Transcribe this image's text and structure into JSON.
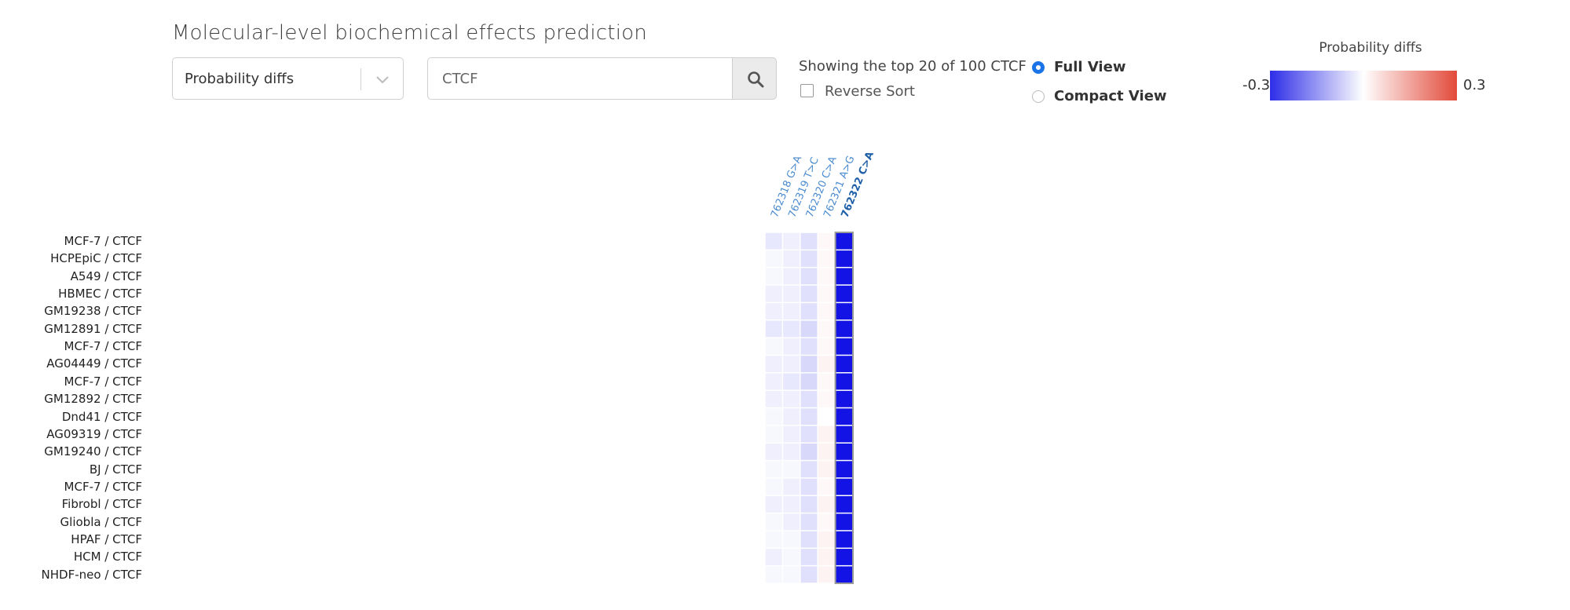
{
  "page_title": "Molecular-level biochemical effects prediction",
  "controls": {
    "metric_select_value": "Probability diffs",
    "search_value": "CTCF",
    "showing_text": "Showing the top 20 of 100 CTCF",
    "reverse_sort_label": "Reverse Sort",
    "reverse_sort_checked": false,
    "view_options": [
      {
        "label": "Full View",
        "selected": true
      },
      {
        "label": "Compact View",
        "selected": false
      }
    ]
  },
  "legend": {
    "title": "Probability diffs",
    "min_label": "-0.3",
    "max_label": "0.3",
    "colors": {
      "negative": "#2d2de8",
      "zero": "#ffffff",
      "positive": "#e24a3a"
    }
  },
  "icons": {
    "search_button": "search-icon",
    "select_toggle": "chevron-down-icon"
  },
  "chart_data": {
    "type": "heatmap",
    "columns": [
      "762318 G>A",
      "762319 T>C",
      "762320 C>A",
      "762321 A>G",
      "762322 C>A"
    ],
    "highlighted_column": "762322 C>A",
    "rows": [
      "MCF-7 / CTCF",
      "HCPEpiC / CTCF",
      "A549 / CTCF",
      "HBMEC / CTCF",
      "GM19238 / CTCF",
      "GM12891 / CTCF",
      "MCF-7 / CTCF",
      "AG04449 / CTCF",
      "MCF-7 / CTCF",
      "GM12892 / CTCF",
      "Dnd41 / CTCF",
      "AG09319 / CTCF",
      "GM19240 / CTCF",
      "BJ / CTCF",
      "MCF-7 / CTCF",
      "Fibrobl / CTCF",
      "Gliobla / CTCF",
      "HPAF / CTCF",
      "HCM / CTCF",
      "NHDF-neo / CTCF"
    ],
    "values": [
      [
        -0.03,
        -0.02,
        -0.04,
        0.01,
        -0.3
      ],
      [
        -0.01,
        -0.02,
        -0.04,
        0.01,
        -0.3
      ],
      [
        -0.01,
        -0.02,
        -0.04,
        0.01,
        -0.3
      ],
      [
        -0.02,
        -0.02,
        -0.04,
        0.01,
        -0.3
      ],
      [
        -0.02,
        -0.02,
        -0.04,
        0.01,
        -0.3
      ],
      [
        -0.03,
        -0.03,
        -0.05,
        0.01,
        -0.3
      ],
      [
        -0.01,
        -0.02,
        -0.04,
        0.01,
        -0.3
      ],
      [
        -0.02,
        -0.02,
        -0.05,
        0.02,
        -0.3
      ],
      [
        -0.02,
        -0.03,
        -0.05,
        0.01,
        -0.3
      ],
      [
        -0.02,
        -0.02,
        -0.04,
        0.01,
        -0.3
      ],
      [
        -0.01,
        -0.02,
        -0.04,
        0.0,
        -0.3
      ],
      [
        -0.01,
        -0.02,
        -0.04,
        0.02,
        -0.3
      ],
      [
        -0.02,
        -0.02,
        -0.05,
        0.02,
        -0.3
      ],
      [
        -0.01,
        -0.01,
        -0.04,
        0.02,
        -0.3
      ],
      [
        -0.01,
        -0.02,
        -0.04,
        0.01,
        -0.3
      ],
      [
        -0.02,
        -0.02,
        -0.04,
        0.02,
        -0.3
      ],
      [
        -0.01,
        -0.02,
        -0.04,
        0.01,
        -0.3
      ],
      [
        -0.01,
        -0.01,
        -0.04,
        0.02,
        -0.3
      ],
      [
        -0.02,
        -0.01,
        -0.04,
        0.02,
        -0.3
      ],
      [
        -0.01,
        -0.01,
        -0.04,
        0.02,
        -0.3
      ]
    ],
    "color_scale": [
      -0.3,
      0.3
    ]
  }
}
